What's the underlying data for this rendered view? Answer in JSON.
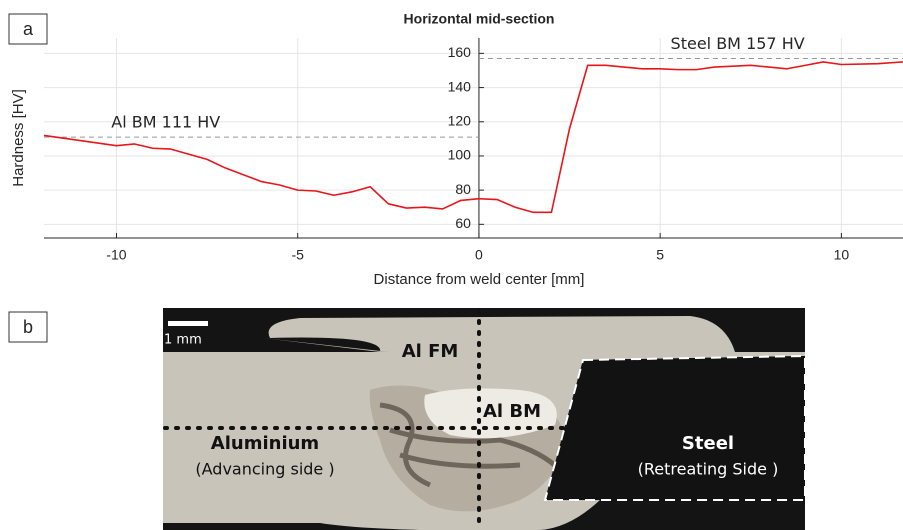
{
  "chart_data": {
    "type": "line",
    "title": "Horizontal mid-section",
    "x_label": "Distance from weld center [mm]",
    "y_label": "Hardness [HV]",
    "x": [
      -12,
      -11,
      -10,
      -9.5,
      -9,
      -8.5,
      -8,
      -7.5,
      -7,
      -6.5,
      -6,
      -5.5,
      -5,
      -4.5,
      -4,
      -3.5,
      -3,
      -2.5,
      -2,
      -1.5,
      -1,
      -0.5,
      0,
      0.5,
      1,
      1.5,
      2,
      2.5,
      3,
      3.5,
      4,
      4.5,
      5,
      5.5,
      6,
      6.5,
      7,
      7.5,
      8,
      8.5,
      9,
      9.5,
      10,
      11,
      11.7
    ],
    "values": [
      112,
      109,
      106,
      107,
      104.5,
      104,
      101,
      98,
      93,
      89,
      85,
      83,
      80,
      79.5,
      77,
      79,
      82,
      72,
      69.5,
      70,
      69,
      74,
      75,
      74.5,
      70,
      67,
      67,
      116,
      153,
      153,
      152,
      151,
      151,
      150.5,
      150.5,
      152,
      152.5,
      153,
      152,
      151,
      153,
      155,
      153.5,
      154,
      155
    ],
    "color": "#e8161b",
    "xlim": [
      -12,
      11.7
    ],
    "ylim": [
      52,
      169
    ],
    "xticks": [
      -10,
      -5,
      0,
      5,
      10
    ],
    "yticks": [
      60,
      80,
      100,
      120,
      140,
      160
    ],
    "grid": true,
    "reference_lines": [
      {
        "label": "Al BM 111 HV",
        "value": 111,
        "xrange": [
          -12,
          0
        ]
      },
      {
        "label": "Steel BM 157 HV",
        "value": 157,
        "xrange": [
          0,
          11.7
        ]
      }
    ]
  },
  "panels": [
    "a",
    "b"
  ],
  "micrograph": {
    "scale_bar": "1 mm",
    "labels": [
      "Al FM",
      "Al BM",
      "Aluminium",
      "(Advancing side )",
      "Steel",
      "(Retreating Side )"
    ]
  }
}
